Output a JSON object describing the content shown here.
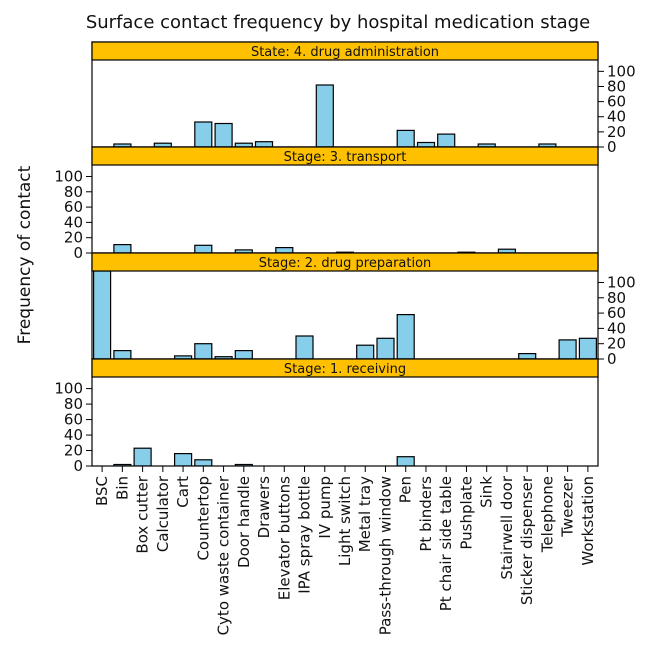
{
  "chart_data": {
    "type": "bar",
    "title": "Surface contact frequency by hospital medication stage",
    "xlabel": "",
    "ylabel": "Frequency of contact",
    "ylim": [
      0,
      115
    ],
    "yticks": [
      0,
      20,
      40,
      60,
      80,
      100
    ],
    "bar_color": "#87ceeb",
    "strip_color": "#ffc000",
    "categories": [
      "BSC",
      "Bin",
      "Box cutter",
      "Calculator",
      "Cart",
      "Countertop",
      "Cyto waste container",
      "Door handle",
      "Drawers",
      "Elevator buttons",
      "IPA spray bottle",
      "IV pump",
      "Light switch",
      "Metal tray",
      "Pass-through window",
      "Pen",
      "Pt binders",
      "Pt chair side table",
      "Pushplate",
      "Sink",
      "Stairwell door",
      "Sticker dispenser",
      "Telephone",
      "Tweezer",
      "Workstation"
    ],
    "panels": [
      {
        "name": "State: 4. drug administration",
        "values": [
          0,
          4,
          0,
          5,
          0,
          33,
          31,
          5,
          7,
          0,
          0,
          82,
          0,
          0,
          0,
          22,
          6,
          17,
          0,
          4,
          0,
          0,
          4,
          0,
          0
        ]
      },
      {
        "name": "Stage: 3. transport",
        "values": [
          0,
          11,
          0,
          0,
          0,
          10,
          0,
          4,
          0,
          7,
          0,
          0,
          1,
          0,
          0,
          0,
          0,
          0,
          1,
          0,
          5,
          0,
          0,
          0,
          0
        ]
      },
      {
        "name": "Stage: 2. drug preparation",
        "values": [
          120,
          11,
          0,
          0,
          4,
          20,
          3,
          11,
          0,
          0,
          30,
          0,
          0,
          18,
          27,
          58,
          0,
          0,
          0,
          0,
          0,
          7,
          0,
          25,
          27
        ]
      },
      {
        "name": "Stage: 1. receiving",
        "values": [
          0,
          2,
          23,
          0,
          16,
          8,
          0,
          2,
          0,
          0,
          0,
          0,
          0,
          0,
          0,
          12,
          0,
          0,
          0,
          0,
          0,
          0,
          0,
          0,
          0
        ]
      }
    ]
  }
}
